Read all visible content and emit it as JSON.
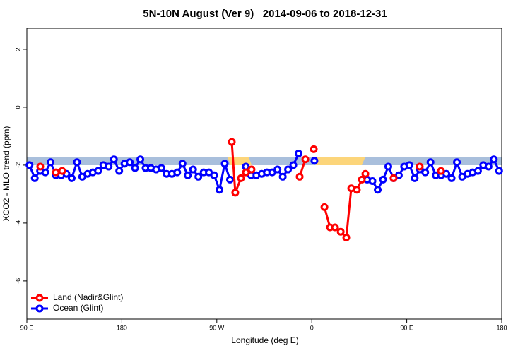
{
  "chart_data": {
    "type": "line",
    "title": "5N-10N August (Ver 9)   2014-09-06 to 2018-12-31",
    "x_label": "Longitude (deg E)",
    "y_label": "XCO2 - MLO trend (ppm)",
    "xlim": [
      90,
      540
    ],
    "ylim": [
      -7.32,
      2.73
    ],
    "xticks": [
      {
        "value": 90,
        "label": "90 E"
      },
      180,
      {
        "value": 270,
        "label": "90 W"
      },
      {
        "value": 360,
        "label": "0"
      },
      {
        "value": 450,
        "label": "90 E"
      },
      {
        "value": 540,
        "label": "180"
      }
    ],
    "yticks": [
      -6,
      -4,
      -2,
      0,
      2
    ],
    "legend": "bottom-left",
    "series": [
      {
        "name": "Land (Nadir&Glint)",
        "color": "#ff0000",
        "x": [
          102.7,
          null,
          117.5,
          123.5,
          null,
          284.2,
          287.5,
          292.9,
          297.6,
          302.9,
          null,
          348.5,
          353.9,
          null,
          361.9,
          null,
          372,
          377.3,
          382,
          387.4,
          392.7,
          397.4,
          402.7,
          407.4,
          410.8,
          null,
          437.5,
          null,
          462.3,
          null,
          482.4
        ],
        "values": [
          -2.05,
          null,
          -2.25,
          -2.2,
          null,
          -1.2,
          -2.95,
          -2.45,
          -2.25,
          -2.15,
          null,
          -2.4,
          -1.8,
          null,
          -1.45,
          null,
          -3.45,
          -4.15,
          -4.15,
          -4.3,
          -4.5,
          -2.8,
          -2.85,
          -2.5,
          -2.3,
          null,
          -2.45,
          null,
          -2.05,
          null,
          -2.2
        ]
      },
      {
        "name": "Ocean (Glint)",
        "color": "#0000ff",
        "x": [
          92.5,
          97.5,
          102.5,
          107.5,
          112.5,
          117.5,
          122.5,
          127.5,
          132.5,
          137.5,
          142.5,
          147.5,
          152.5,
          157.5,
          162.5,
          167.5,
          172.5,
          177.5,
          182.5,
          187.5,
          192.5,
          197.5,
          202.5,
          207.5,
          212.5,
          217.5,
          222.5,
          227.5,
          232.5,
          237.5,
          242.5,
          247.5,
          252.5,
          257.5,
          262.5,
          267.5,
          272.5,
          277.5,
          282.5,
          287.5,
          292.5,
          297.5,
          302.5,
          307.5,
          312.5,
          317.5,
          322.5,
          327.5,
          332.5,
          337.5,
          342.5,
          347.5,
          352.5,
          357.5,
          362.5,
          367.5,
          372.5,
          377.5,
          382.5,
          387.5,
          392.5,
          397.5,
          402.5,
          407.5,
          412.5,
          417.5,
          422.5,
          427.5,
          432.5,
          437.5,
          442.5,
          447.5,
          452.5,
          457.5,
          462.5,
          467.5,
          472.5,
          477.5,
          482.5,
          487.5,
          492.5,
          497.5,
          502.5,
          507.5,
          512.5,
          517.5,
          522.5,
          527.5,
          532.5,
          537.5
        ],
        "values": [
          -2.0,
          -2.45,
          -2.2,
          -2.25,
          -1.9,
          -2.35,
          -2.35,
          -2.3,
          -2.45,
          -1.9,
          -2.4,
          -2.3,
          -2.25,
          -2.2,
          -2.0,
          -2.05,
          -1.8,
          -2.2,
          -1.95,
          -1.9,
          -2.1,
          -1.8,
          -2.1,
          -2.1,
          -2.15,
          -2.1,
          -2.3,
          -2.3,
          -2.25,
          -1.95,
          -2.35,
          -2.15,
          -2.4,
          -2.25,
          -2.25,
          -2.35,
          -2.85,
          -1.95,
          -2.5,
          null,
          null,
          -2.05,
          -2.35,
          -2.35,
          -2.3,
          -2.25,
          -2.25,
          -2.15,
          -2.4,
          -2.15,
          -2.0,
          -1.6,
          null,
          null,
          -1.85,
          null,
          null,
          null,
          null,
          null,
          null,
          null,
          null,
          null,
          -2.5,
          -2.55,
          -2.85,
          -2.5,
          -2.05,
          -2.45,
          -2.35,
          -2.05,
          -2.0,
          -2.45,
          -2.15,
          -2.25,
          -1.9,
          -2.35,
          -2.35,
          -2.3,
          -2.45,
          -1.9,
          -2.4,
          -2.3,
          -2.25,
          -2.2,
          -2.0,
          -2.05,
          -1.8,
          -2.2
        ]
      }
    ]
  }
}
